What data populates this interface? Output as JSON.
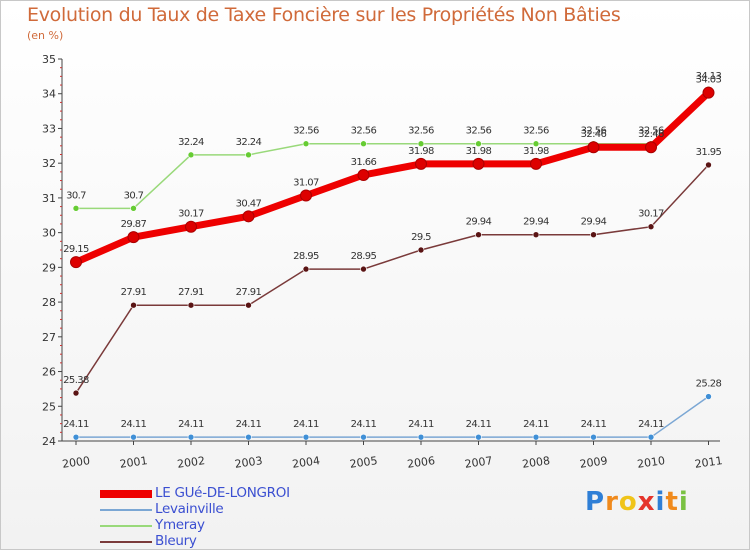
{
  "header": {
    "title": "Evolution du Taux de Taxe Foncière sur les Propriétés Non Bâties",
    "subtitle": "(en %)"
  },
  "chart_data": {
    "type": "line",
    "title": "Evolution du Taux de Taxe Foncière sur les Propriétés Non Bâties",
    "ylabel": "(en %)",
    "xlabel": "",
    "x": [
      "2000",
      "2001",
      "2002",
      "2003",
      "2004",
      "2005",
      "2006",
      "2007",
      "2008",
      "2009",
      "2010",
      "2011"
    ],
    "ylim": [
      24,
      35
    ],
    "yticks": [
      "24",
      "25",
      "26",
      "27",
      "28",
      "29",
      "30",
      "31",
      "32",
      "33",
      "34",
      "35"
    ],
    "grid": false,
    "legend_position": "bottom-left",
    "series": [
      {
        "name": "LE GUé-DE-LONGROI",
        "color": "#ee0000",
        "marker_color": "#dd0000",
        "values": [
          29.15,
          29.87,
          30.17,
          30.47,
          31.07,
          31.66,
          31.98,
          31.98,
          31.98,
          32.46,
          32.46,
          34.03
        ],
        "labels": [
          "29.15",
          "29.87",
          "30.17",
          "30.47",
          "31.07",
          "31.66",
          "31.98",
          "31.98",
          "31.98",
          "32.46",
          "32.46",
          "34.03"
        ]
      },
      {
        "name": "Levainville",
        "color": "#7ba7d4",
        "marker_color": "#3f8fd6",
        "values": [
          24.11,
          24.11,
          24.11,
          24.11,
          24.11,
          24.11,
          24.11,
          24.11,
          24.11,
          24.11,
          24.11,
          25.28
        ],
        "labels": [
          "24.11",
          "24.11",
          "24.11",
          "24.11",
          "24.11",
          "24.11",
          "24.11",
          "24.11",
          "24.11",
          "24.11",
          "24.11",
          "25.28"
        ]
      },
      {
        "name": "Ymeray",
        "color": "#99d97a",
        "marker_color": "#66cc33",
        "values": [
          30.7,
          30.7,
          32.24,
          32.24,
          32.56,
          32.56,
          32.56,
          32.56,
          32.56,
          32.56,
          32.56,
          34.13
        ],
        "labels": [
          "30.7",
          "30.7",
          "32.24",
          "32.24",
          "32.56",
          "32.56",
          "32.56",
          "32.56",
          "32.56",
          "32.56",
          "32.56",
          "34.13"
        ]
      },
      {
        "name": "Bleury",
        "color": "#7a3a3a",
        "marker_color": "#5a1414",
        "values": [
          25.38,
          27.91,
          27.91,
          27.91,
          28.95,
          28.95,
          29.5,
          29.94,
          29.94,
          29.94,
          30.17,
          31.95
        ],
        "labels": [
          "25.38",
          "27.91",
          "27.91",
          "27.91",
          "28.95",
          "28.95",
          "29.5",
          "29.94",
          "29.94",
          "29.94",
          "30.17",
          "31.95"
        ]
      }
    ]
  },
  "logo": {
    "letters": [
      "P",
      "r",
      "o",
      "x",
      "i",
      "t",
      "i"
    ],
    "colors": [
      "#2f7fd6",
      "#f08a1c",
      "#f0c419",
      "#e5342b",
      "#2f7fd6",
      "#f08a1c",
      "#7ac142"
    ]
  }
}
